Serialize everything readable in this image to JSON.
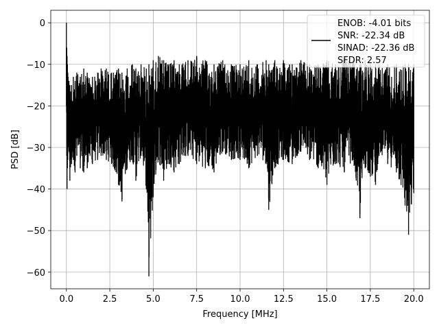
{
  "chart_data": {
    "type": "line",
    "title": "",
    "xlabel": "Frequency [MHz]",
    "ylabel": "PSD [dB]",
    "xlim": [
      -0.9,
      20.9
    ],
    "ylim": [
      -64,
      3
    ],
    "xticks": [
      0.0,
      2.5,
      5.0,
      7.5,
      10.0,
      12.5,
      15.0,
      17.5,
      20.0
    ],
    "xtick_labels": [
      "0.0",
      "2.5",
      "5.0",
      "7.5",
      "10.0",
      "12.5",
      "15.0",
      "17.5",
      "20.0"
    ],
    "yticks": [
      0,
      -10,
      -20,
      -30,
      -40,
      -50,
      -60
    ],
    "ytick_labels": [
      "0",
      "−10",
      "−20",
      "−30",
      "−40",
      "−50",
      "−60"
    ],
    "grid": true,
    "legend_position": "top-right",
    "series": [
      {
        "name": "ENOB: -4.01 bits\nSNR: -22.34 dB\nSINAD: -22.36 dB\nSFDR: 2.57",
        "color": "#000000",
        "x": [
          0.0,
          0.02,
          0.04,
          0.06,
          0.08,
          0.1,
          0.15,
          0.2,
          0.3,
          0.4,
          0.5,
          0.6,
          0.8,
          1.0,
          1.2,
          1.5,
          1.8,
          2.0,
          2.3,
          2.6,
          3.0,
          3.2,
          3.5,
          3.8,
          4.0,
          4.3,
          4.6,
          4.75,
          5.0,
          5.3,
          5.6,
          5.9,
          6.2,
          6.5,
          7.0,
          7.5,
          8.0,
          8.5,
          9.0,
          9.5,
          10.0,
          10.5,
          11.0,
          11.5,
          11.65,
          12.0,
          12.5,
          13.0,
          13.5,
          14.0,
          14.5,
          15.0,
          15.5,
          16.0,
          16.5,
          16.9,
          17.2,
          17.5,
          17.8,
          18.0,
          18.5,
          19.0,
          19.5,
          19.7,
          20.0
        ],
        "y_top": [
          0,
          -6,
          -8,
          -10,
          -12,
          -13,
          -14,
          -15,
          -15,
          -13,
          -14,
          -12,
          -13,
          -11,
          -12,
          -13,
          -12,
          -11,
          -11,
          -12,
          -11,
          -12,
          -11,
          -10,
          -11,
          -10,
          -11,
          -10,
          -9,
          -8,
          -9,
          -10,
          -9,
          -10,
          -9,
          -8,
          -9,
          -10,
          -9,
          -10,
          -10,
          -9,
          -10,
          -9,
          -10,
          -9,
          -9,
          -10,
          -9,
          -10,
          -10,
          -9,
          -10,
          -8,
          -9,
          -10,
          -9,
          -10,
          -10,
          -10,
          -10,
          -10,
          -10,
          -10,
          -10
        ],
        "y_bottom": [
          -20,
          -32,
          -40,
          -35,
          -33,
          -30,
          -31,
          -38,
          -34,
          -33,
          -36,
          -32,
          -35,
          -36,
          -35,
          -34,
          -33,
          -32,
          -33,
          -34,
          -39,
          -43,
          -35,
          -33,
          -38,
          -32,
          -40,
          -61,
          -42,
          -33,
          -38,
          -34,
          -36,
          -34,
          -32,
          -34,
          -35,
          -36,
          -31,
          -33,
          -33,
          -35,
          -32,
          -34,
          -45,
          -35,
          -33,
          -34,
          -31,
          -33,
          -35,
          -39,
          -34,
          -36,
          -33,
          -47,
          -35,
          -37,
          -39,
          -32,
          -34,
          -36,
          -44,
          -51,
          -41
        ]
      }
    ]
  }
}
